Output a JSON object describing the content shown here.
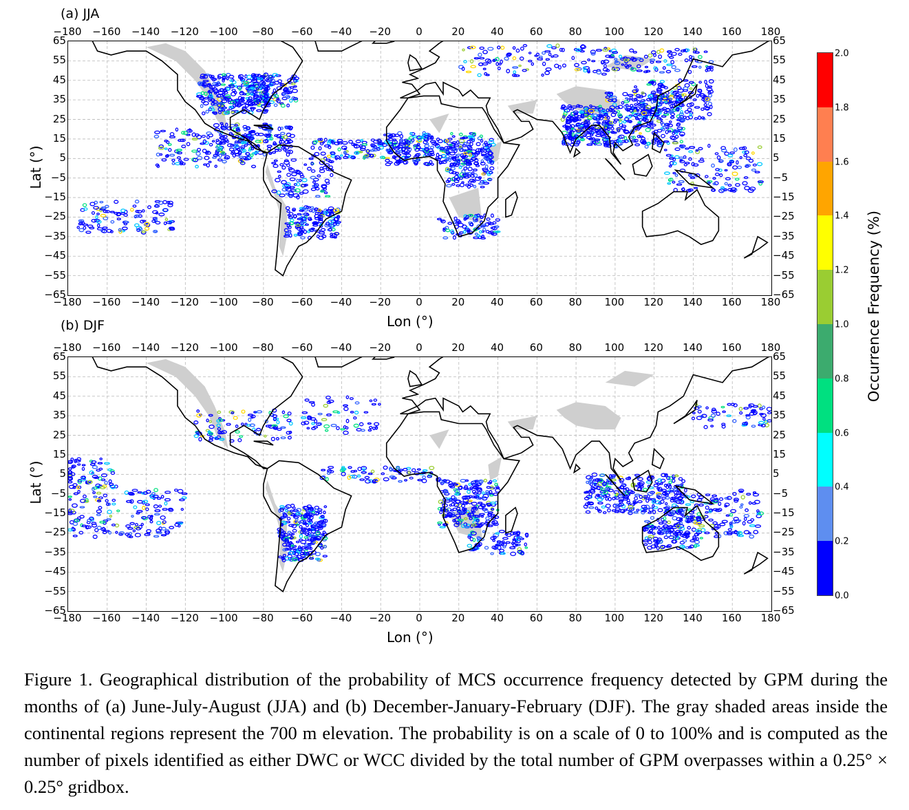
{
  "panels": [
    {
      "title": "(a) JJA",
      "lon_ticks": [
        "−180",
        "−160",
        "−140",
        "−120",
        "−100",
        "−80",
        "−60",
        "−40",
        "−20",
        "0",
        "20",
        "40",
        "60",
        "80",
        "100",
        "120",
        "140",
        "160",
        "180"
      ],
      "lat_ticks": [
        "65",
        "55",
        "45",
        "35",
        "25",
        "15",
        "5",
        "−5",
        "−15",
        "−25",
        "−35",
        "−45",
        "−55",
        "−65"
      ],
      "xlabel": "Lon (°)",
      "ylabel": "Lat (°)"
    },
    {
      "title": "(b) DJF",
      "lon_ticks": [
        "−180",
        "−160",
        "−140",
        "−120",
        "−100",
        "−80",
        "−60",
        "−40",
        "−20",
        "0",
        "20",
        "40",
        "60",
        "80",
        "100",
        "120",
        "140",
        "160",
        "180"
      ],
      "lat_ticks": [
        "65",
        "55",
        "45",
        "35",
        "25",
        "15",
        "5",
        "−5",
        "−15",
        "−25",
        "−35",
        "−45",
        "−55",
        "−65"
      ],
      "xlabel": "Lon (°)",
      "ylabel": "Lat (°)"
    }
  ],
  "colorbar": {
    "label": "Occurrence Frequency (%)",
    "ticks": [
      "2.0",
      "1.8",
      "1.6",
      "1.4",
      "1.2",
      "1.0",
      "0.8",
      "0.6",
      "0.4",
      "0.2",
      "0.0"
    ],
    "colors": [
      "#0000ff",
      "#5e8ef0",
      "#00ffff",
      "#00e080",
      "#3cab6e",
      "#9acd32",
      "#ffff00",
      "#ffa500",
      "#ff7f50",
      "#ff0000"
    ]
  },
  "caption": "Figure 1. Geographical distribution of the probability of MCS occurrence frequency detected by GPM during the months of (a) June-July-August (JJA) and (b) December-January-February (DJF). The gray shaded areas inside the continental regions represent the 700 m elevation. The probability is on a scale of 0 to 100% and is computed as the number of pixels identified as either DWC or WCC divided by the total number of GPM overpasses within a 0.25° × 0.25° gridbox."
}
